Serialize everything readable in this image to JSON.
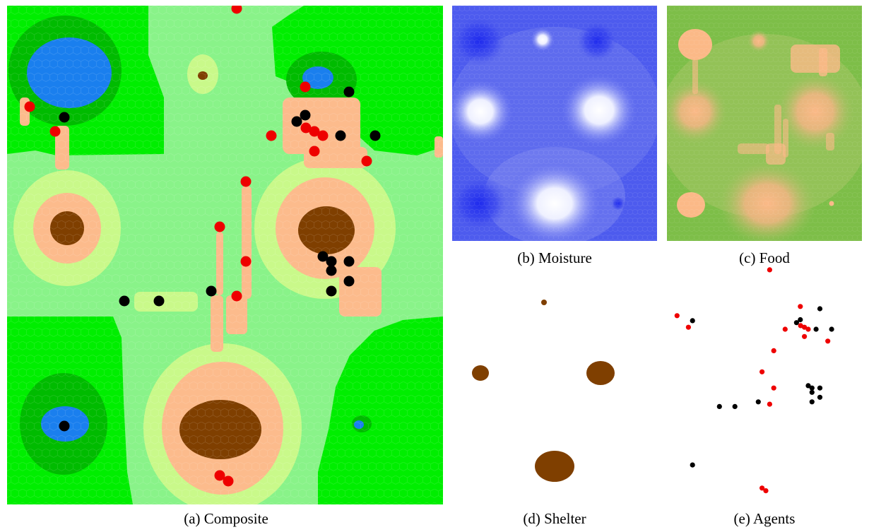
{
  "figure": {
    "panels": [
      {
        "id": "a",
        "caption": "(a) Composite"
      },
      {
        "id": "b",
        "caption": "(b) Moisture"
      },
      {
        "id": "c",
        "caption": "(c) Food"
      },
      {
        "id": "d",
        "caption": "(d) Shelter"
      },
      {
        "id": "e",
        "caption": "(e) Agents"
      }
    ]
  },
  "colors": {
    "grass_light": "#89f389",
    "grass_bright": "#00ee00",
    "forest": "#00bb00",
    "water": "#1a7fee",
    "meadow_yellow": "#c9f98a",
    "sand": "#fcbb8c",
    "shelter_brown": "#7f3f00",
    "agent_red": "#ee0000",
    "agent_black": "#000000",
    "moisture_blue": "#4b58ee",
    "moisture_deep": "#2430ee",
    "food_green": "#7cbe46",
    "food_peach": "#fbb987"
  },
  "legend": {
    "black_agents_label": "",
    "red_agents_label": ""
  }
}
